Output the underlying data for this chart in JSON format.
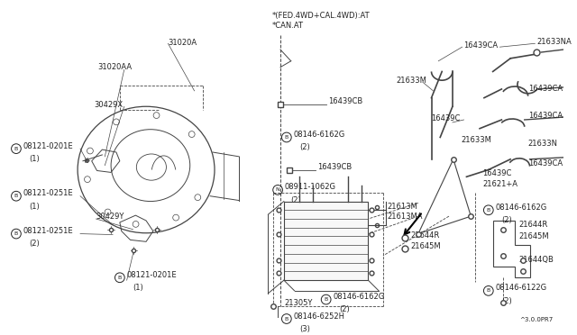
{
  "bg_color": "#ffffff",
  "line_color": "#444444",
  "text_color": "#222222",
  "fig_width": 6.4,
  "fig_height": 3.72,
  "dpi": 100,
  "notes_top": [
    "*(FED.4WD+CAL.4WD):AT",
    "*CAN.AT"
  ],
  "diagram_ref": "^3.0.0PR7"
}
